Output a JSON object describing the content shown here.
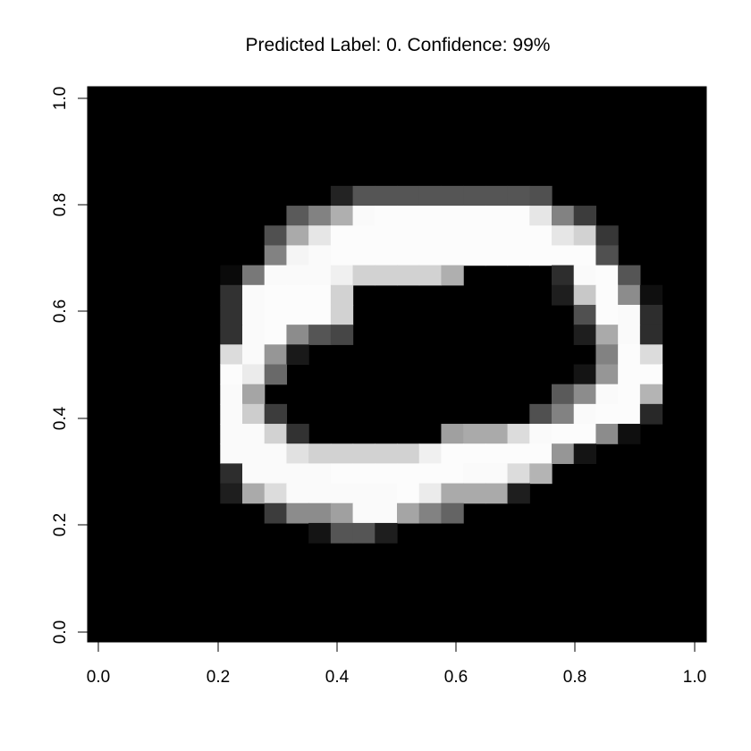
{
  "chart_data": {
    "type": "heatmap",
    "title": "Predicted Label: 0.  Confidence: 99%",
    "xlabel": "",
    "ylabel": "",
    "xlim": [
      0,
      1
    ],
    "ylim": [
      0,
      1
    ],
    "x_ticks": [
      "0.0",
      "0.2",
      "0.4",
      "0.6",
      "0.8",
      "1.0"
    ],
    "y_ticks": [
      "0.0",
      "0.2",
      "0.4",
      "0.6",
      "0.8",
      "1.0"
    ],
    "colormap": "grayscale (0 = black, 255 = white)",
    "grid": false,
    "background": "#000000",
    "nrows": 28,
    "ncols": 28,
    "row_order": "top-to-bottom",
    "pixels": [
      [
        0,
        0,
        0,
        0,
        0,
        0,
        0,
        0,
        0,
        0,
        0,
        0,
        0,
        0,
        0,
        0,
        0,
        0,
        0,
        0,
        0,
        0,
        0,
        0,
        0,
        0,
        0,
        0
      ],
      [
        0,
        0,
        0,
        0,
        0,
        0,
        0,
        0,
        0,
        0,
        0,
        0,
        0,
        0,
        0,
        0,
        0,
        0,
        0,
        0,
        0,
        0,
        0,
        0,
        0,
        0,
        0,
        0
      ],
      [
        0,
        0,
        0,
        0,
        0,
        0,
        0,
        0,
        0,
        0,
        0,
        0,
        0,
        0,
        0,
        0,
        0,
        0,
        0,
        0,
        0,
        0,
        0,
        0,
        0,
        0,
        0,
        0
      ],
      [
        0,
        0,
        0,
        0,
        0,
        0,
        0,
        0,
        0,
        0,
        0,
        0,
        0,
        0,
        0,
        0,
        0,
        0,
        0,
        0,
        0,
        0,
        0,
        0,
        0,
        0,
        0,
        0
      ],
      [
        0,
        0,
        0,
        0,
        0,
        0,
        0,
        0,
        0,
        0,
        0,
        0,
        0,
        0,
        0,
        0,
        0,
        0,
        0,
        0,
        0,
        0,
        0,
        0,
        0,
        0,
        0,
        0
      ],
      [
        0,
        0,
        0,
        0,
        0,
        0,
        0,
        0,
        0,
        0,
        0,
        35,
        85,
        85,
        85,
        85,
        85,
        85,
        85,
        85,
        80,
        0,
        0,
        0,
        0,
        0,
        0,
        0
      ],
      [
        0,
        0,
        0,
        0,
        0,
        0,
        0,
        0,
        0,
        90,
        130,
        175,
        250,
        252,
        252,
        252,
        252,
        252,
        252,
        252,
        230,
        130,
        60,
        0,
        0,
        0,
        0,
        0
      ],
      [
        0,
        0,
        0,
        0,
        0,
        0,
        0,
        0,
        80,
        170,
        230,
        252,
        252,
        252,
        252,
        252,
        252,
        252,
        252,
        252,
        252,
        230,
        210,
        55,
        0,
        0,
        0,
        0
      ],
      [
        0,
        0,
        0,
        0,
        0,
        0,
        0,
        0,
        130,
        245,
        250,
        252,
        252,
        252,
        252,
        252,
        252,
        252,
        252,
        252,
        252,
        252,
        252,
        80,
        0,
        0,
        0,
        0
      ],
      [
        0,
        0,
        0,
        0,
        0,
        0,
        10,
        120,
        250,
        250,
        250,
        240,
        210,
        210,
        210,
        210,
        175,
        0,
        0,
        0,
        0,
        45,
        250,
        252,
        85,
        0,
        0,
        0
      ],
      [
        0,
        0,
        0,
        0,
        0,
        0,
        50,
        250,
        252,
        252,
        252,
        210,
        0,
        0,
        0,
        0,
        0,
        0,
        0,
        0,
        0,
        30,
        200,
        252,
        140,
        15,
        0,
        0
      ],
      [
        0,
        0,
        0,
        0,
        0,
        0,
        50,
        250,
        252,
        252,
        252,
        210,
        0,
        0,
        0,
        0,
        0,
        0,
        0,
        0,
        0,
        0,
        80,
        252,
        250,
        45,
        0,
        0
      ],
      [
        0,
        0,
        0,
        0,
        0,
        0,
        50,
        250,
        252,
        140,
        85,
        70,
        0,
        0,
        0,
        0,
        0,
        0,
        0,
        0,
        0,
        0,
        30,
        170,
        250,
        45,
        0,
        0
      ],
      [
        0,
        0,
        0,
        0,
        0,
        0,
        220,
        250,
        150,
        25,
        0,
        0,
        0,
        0,
        0,
        0,
        0,
        0,
        0,
        0,
        0,
        0,
        0,
        130,
        252,
        220,
        0,
        0
      ],
      [
        0,
        0,
        0,
        0,
        0,
        0,
        252,
        235,
        105,
        0,
        0,
        0,
        0,
        0,
        0,
        0,
        0,
        0,
        0,
        0,
        0,
        0,
        20,
        150,
        252,
        252,
        0,
        0
      ],
      [
        0,
        0,
        0,
        0,
        0,
        0,
        250,
        165,
        0,
        0,
        0,
        0,
        0,
        0,
        0,
        0,
        0,
        0,
        0,
        0,
        0,
        90,
        140,
        250,
        252,
        180,
        0,
        0
      ],
      [
        0,
        0,
        0,
        0,
        0,
        0,
        250,
        205,
        60,
        0,
        0,
        0,
        0,
        0,
        0,
        0,
        0,
        0,
        0,
        0,
        80,
        130,
        250,
        252,
        252,
        40,
        0,
        0
      ],
      [
        0,
        0,
        0,
        0,
        0,
        0,
        250,
        250,
        210,
        50,
        0,
        0,
        0,
        0,
        0,
        0,
        160,
        170,
        170,
        220,
        250,
        252,
        252,
        140,
        15,
        0,
        0,
        0
      ],
      [
        0,
        0,
        0,
        0,
        0,
        0,
        250,
        250,
        250,
        225,
        210,
        210,
        210,
        210,
        210,
        240,
        252,
        252,
        252,
        252,
        252,
        150,
        20,
        0,
        0,
        0,
        0,
        0
      ],
      [
        0,
        0,
        0,
        0,
        0,
        0,
        45,
        250,
        250,
        250,
        250,
        252,
        252,
        252,
        252,
        252,
        252,
        250,
        250,
        220,
        180,
        0,
        0,
        0,
        0,
        0,
        0,
        0
      ],
      [
        0,
        0,
        0,
        0,
        0,
        0,
        30,
        170,
        220,
        250,
        250,
        250,
        250,
        250,
        252,
        235,
        170,
        170,
        170,
        30,
        0,
        0,
        0,
        0,
        0,
        0,
        0,
        0
      ],
      [
        0,
        0,
        0,
        0,
        0,
        0,
        0,
        0,
        60,
        140,
        140,
        160,
        250,
        250,
        165,
        130,
        100,
        0,
        0,
        0,
        0,
        0,
        0,
        0,
        0,
        0,
        0,
        0
      ],
      [
        0,
        0,
        0,
        0,
        0,
        0,
        0,
        0,
        0,
        0,
        20,
        85,
        85,
        30,
        0,
        0,
        0,
        0,
        0,
        0,
        0,
        0,
        0,
        0,
        0,
        0,
        0,
        0
      ],
      [
        0,
        0,
        0,
        0,
        0,
        0,
        0,
        0,
        0,
        0,
        0,
        0,
        0,
        0,
        0,
        0,
        0,
        0,
        0,
        0,
        0,
        0,
        0,
        0,
        0,
        0,
        0,
        0
      ],
      [
        0,
        0,
        0,
        0,
        0,
        0,
        0,
        0,
        0,
        0,
        0,
        0,
        0,
        0,
        0,
        0,
        0,
        0,
        0,
        0,
        0,
        0,
        0,
        0,
        0,
        0,
        0,
        0
      ],
      [
        0,
        0,
        0,
        0,
        0,
        0,
        0,
        0,
        0,
        0,
        0,
        0,
        0,
        0,
        0,
        0,
        0,
        0,
        0,
        0,
        0,
        0,
        0,
        0,
        0,
        0,
        0,
        0
      ],
      [
        0,
        0,
        0,
        0,
        0,
        0,
        0,
        0,
        0,
        0,
        0,
        0,
        0,
        0,
        0,
        0,
        0,
        0,
        0,
        0,
        0,
        0,
        0,
        0,
        0,
        0,
        0,
        0
      ],
      [
        0,
        0,
        0,
        0,
        0,
        0,
        0,
        0,
        0,
        0,
        0,
        0,
        0,
        0,
        0,
        0,
        0,
        0,
        0,
        0,
        0,
        0,
        0,
        0,
        0,
        0,
        0,
        0
      ]
    ]
  }
}
